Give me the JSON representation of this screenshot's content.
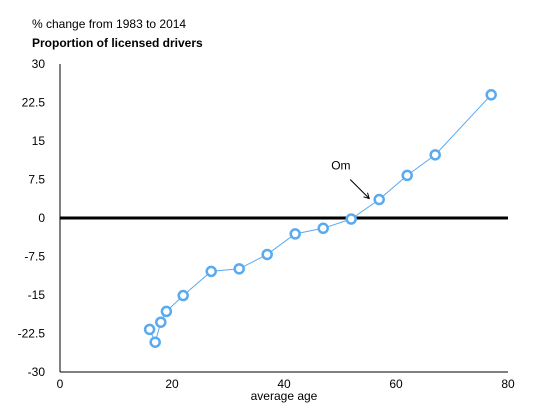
{
  "chart_data": {
    "type": "line",
    "subtitle": "% change from 1983 to 2014",
    "title": "Proportion of licensed drivers",
    "xlabel": "average age",
    "ylabel": "",
    "xlim": [
      0,
      80
    ],
    "ylim": [
      -30,
      30
    ],
    "xticks": [
      0,
      20,
      40,
      60,
      80
    ],
    "yticks": [
      30,
      22.5,
      15,
      7.5,
      0,
      -7.5,
      -15,
      -22.5,
      -30
    ],
    "grid": false,
    "zero_line": true,
    "series": [
      {
        "color": "#5aaaf0",
        "points": [
          {
            "x": 16,
            "y": -21.7
          },
          {
            "x": 17,
            "y": -24.2
          },
          {
            "x": 18,
            "y": -20.3
          },
          {
            "x": 19,
            "y": -18.2
          },
          {
            "x": 22,
            "y": -15.1
          },
          {
            "x": 27,
            "y": -10.4
          },
          {
            "x": 32,
            "y": -9.9
          },
          {
            "x": 37,
            "y": -7.1
          },
          {
            "x": 42,
            "y": -3.1
          },
          {
            "x": 47,
            "y": -2.0
          },
          {
            "x": 52,
            "y": -0.2
          },
          {
            "x": 57,
            "y": 3.6
          },
          {
            "x": 62,
            "y": 8.3
          },
          {
            "x": 67,
            "y": 12.3
          },
          {
            "x": 77,
            "y": 24.0
          }
        ]
      }
    ],
    "annotations": [
      {
        "text": "Om",
        "x": 57,
        "y": 3.6
      }
    ]
  }
}
